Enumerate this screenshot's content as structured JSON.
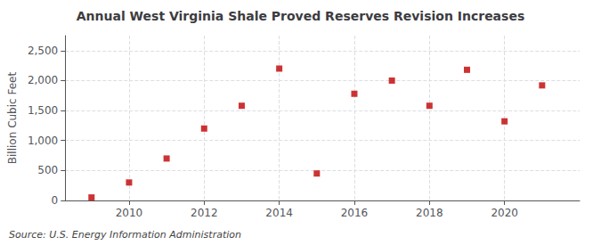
{
  "chart_data": {
    "type": "scatter",
    "title": "Annual West Virginia Shale Proved Reserves Revision Increases",
    "ylabel": "Billion Cubic Feet",
    "annotation": "Source: U.S. Energy Information Administration",
    "x": [
      2009,
      2010,
      2011,
      2012,
      2013,
      2014,
      2015,
      2016,
      2017,
      2018,
      2019,
      2020,
      2021
    ],
    "values": [
      50,
      300,
      700,
      1200,
      1580,
      2200,
      450,
      1780,
      2000,
      1580,
      2180,
      1320,
      1920
    ],
    "color": "#c00000",
    "marker": "square",
    "xlim": [
      2008.3,
      2022.0
    ],
    "xticks": [
      2010,
      2012,
      2014,
      2016,
      2018,
      2020
    ],
    "ylim": [
      0,
      2750
    ],
    "yticks": [
      0,
      500,
      {
        "value": 1000,
        "label": "1,000"
      },
      {
        "value": 1500,
        "label": "1,500"
      },
      {
        "value": 2000,
        "label": "2,000"
      },
      {
        "value": 2500,
        "label": "2,500"
      }
    ],
    "grid": true
  }
}
